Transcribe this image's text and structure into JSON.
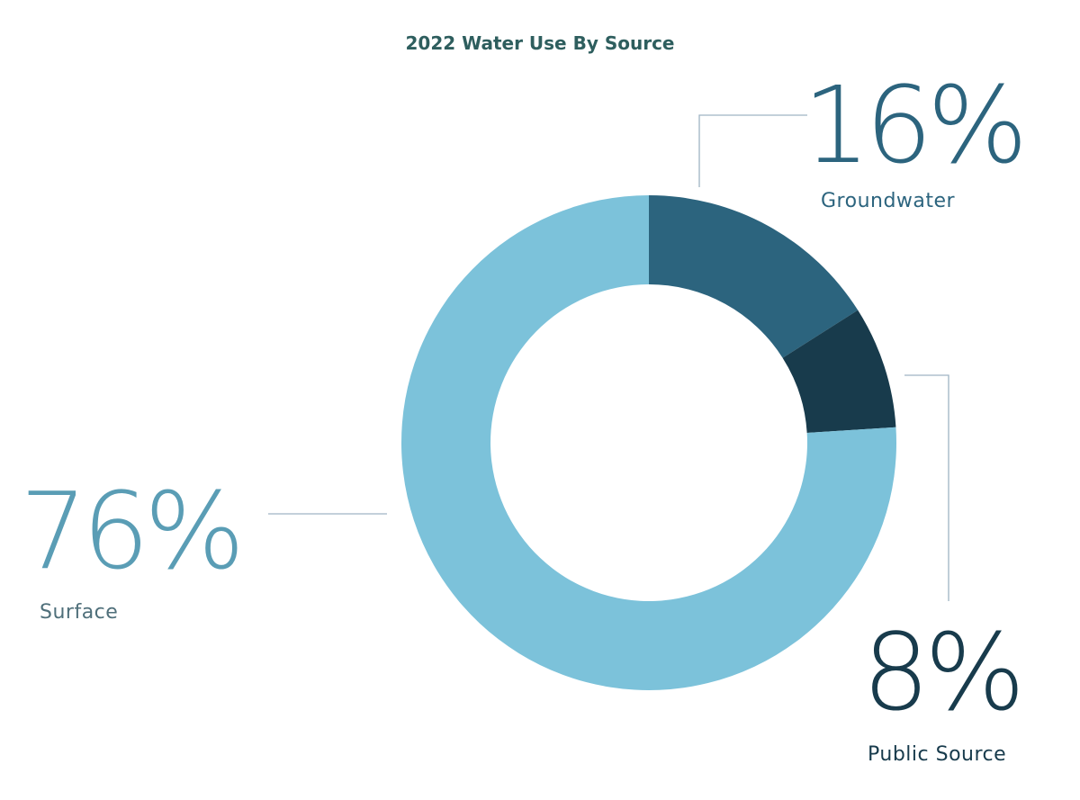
{
  "chart_data": {
    "type": "pie",
    "variant": "donut",
    "title": "2022 Water Use By Source",
    "slices": [
      {
        "name": "Groundwater",
        "value": 16,
        "value_label": "16%",
        "color": "#2c647e"
      },
      {
        "name": "Public Source",
        "value": 8,
        "value_label": "8%",
        "color": "#183b4c"
      },
      {
        "name": "Surface",
        "value": 76,
        "value_label": "76%",
        "color": "#7cc2da"
      }
    ],
    "start": "12 o'clock",
    "direction": "clockwise",
    "legend": "none"
  },
  "colors": {
    "title": "#2e5e5e",
    "leader": "#9fb4c4",
    "surface_text": "#5a9db5",
    "surface_label_text": "#4f6f7a"
  }
}
